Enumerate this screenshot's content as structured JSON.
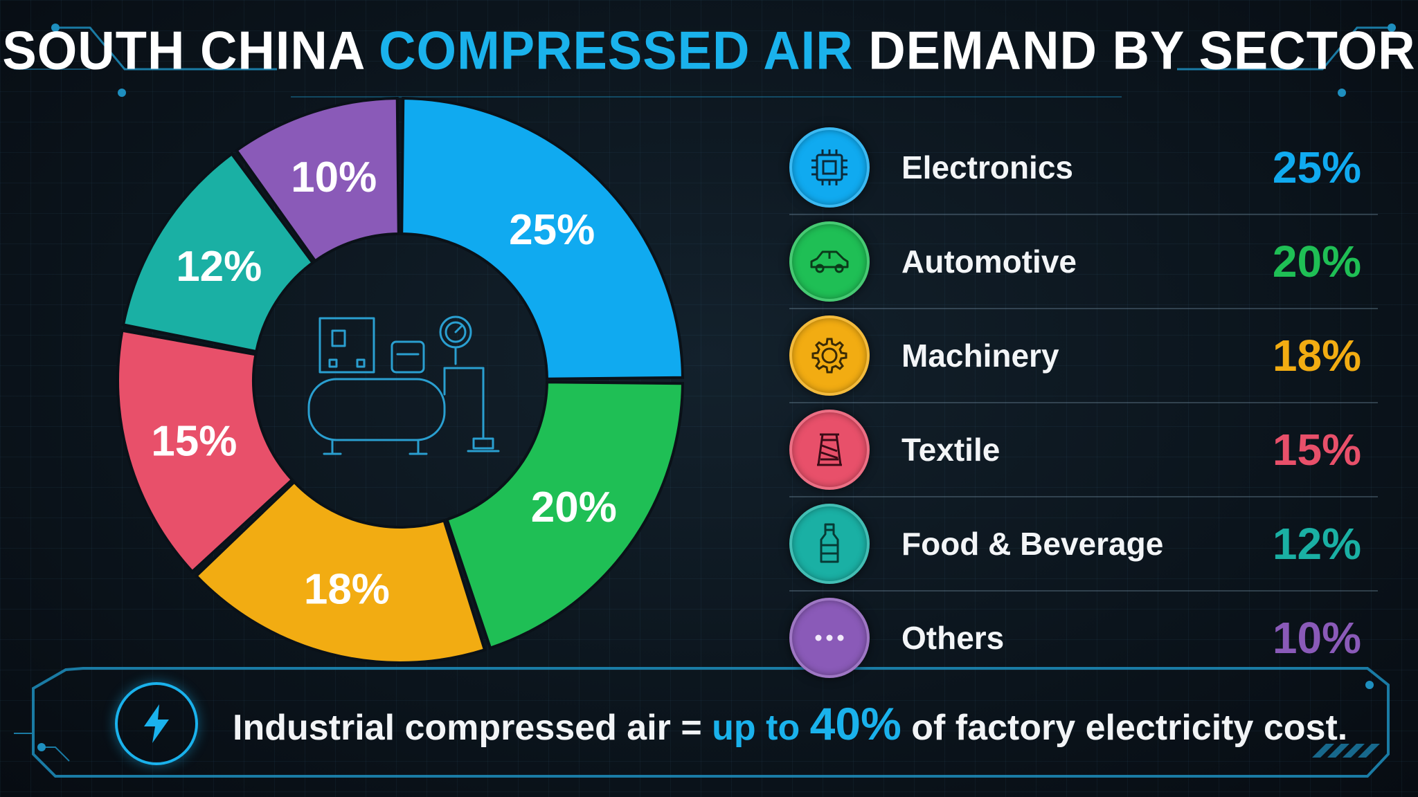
{
  "title": {
    "part1": "SOUTH CHINA",
    "part2": "COMPRESSED AIR",
    "part3": "DEMAND BY SECTOR"
  },
  "colors": {
    "accent": "#1ab2ec",
    "electronics": "#10aaf0",
    "automotive": "#1fbf55",
    "machinery": "#f2ac12",
    "textile": "#e8506a",
    "food_beverage": "#1ab0a4",
    "others": "#8a5ab8"
  },
  "chart_data": {
    "type": "pie",
    "donut": true,
    "categories": [
      "Electronics",
      "Automotive",
      "Machinery",
      "Textile",
      "Food & Beverage",
      "Others"
    ],
    "values": [
      25,
      20,
      18,
      15,
      12,
      10
    ],
    "data_labels": [
      "25%",
      "20%",
      "18%",
      "15%",
      "12%",
      "10%"
    ],
    "colors": [
      "#10aaf0",
      "#1fbf55",
      "#f2ac12",
      "#e8506a",
      "#1ab0a4",
      "#8a5ab8"
    ],
    "center_icon": "air-compressor-icon"
  },
  "legend": [
    {
      "label": "Electronics",
      "value": "25%",
      "icon": "microchip-icon",
      "color": "#10aaf0"
    },
    {
      "label": "Automotive",
      "value": "20%",
      "icon": "car-icon",
      "color": "#1fbf55"
    },
    {
      "label": "Machinery",
      "value": "18%",
      "icon": "gear-icon",
      "color": "#f2ac12"
    },
    {
      "label": "Textile",
      "value": "15%",
      "icon": "thread-spool-icon",
      "color": "#e8506a"
    },
    {
      "label": "Food & Beverage",
      "value": "12%",
      "icon": "bottle-icon",
      "color": "#1ab0a4"
    },
    {
      "label": "Others",
      "value": "10%",
      "icon": "more-dots-icon",
      "color": "#8a5ab8"
    }
  ],
  "banner": {
    "icon": "lightning-bolt-icon",
    "text_before": "Industrial compressed air =",
    "text_highlight": "up to",
    "text_big": "40%",
    "text_after": "of factory electricity cost."
  }
}
